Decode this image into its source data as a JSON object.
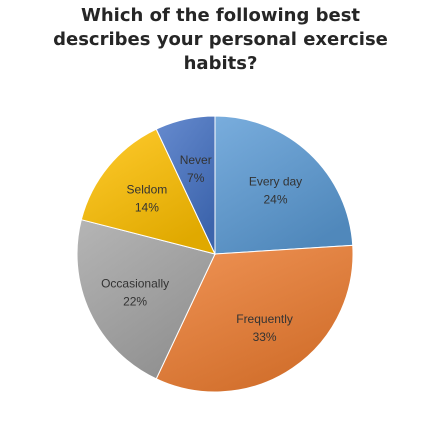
{
  "chart_data": {
    "type": "pie",
    "title": "Which of the following best\ndescribes your personal exercise\nhabits?",
    "categories": [
      "Every day",
      "Frequently",
      "Occasionally",
      "Seldom",
      "Never"
    ],
    "values": [
      24,
      33,
      22,
      14,
      7
    ],
    "value_labels": [
      "24%",
      "33%",
      "22%",
      "14%",
      "7%"
    ],
    "colors": [
      "#5B9BD5",
      "#ED7D31",
      "#A5A5A5",
      "#FFC000",
      "#4472C4"
    ],
    "legend": "none"
  }
}
